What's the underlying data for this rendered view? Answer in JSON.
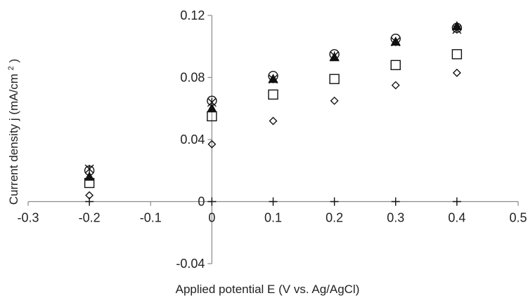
{
  "chart_data": {
    "type": "scatter",
    "title": "",
    "xlabel": "Applied potential E (V vs. Ag/AgCl)",
    "ylabel_main": "Current density j (mA/cm",
    "ylabel_sup": "2",
    "ylabel_tail": ")",
    "xlim": [
      -0.3,
      0.5
    ],
    "ylim": [
      -0.04,
      0.12
    ],
    "x_ticks": [
      -0.3,
      -0.2,
      -0.1,
      0,
      0.1,
      0.2,
      0.3,
      0.4,
      0.5
    ],
    "x_tick_labels": [
      "-0.3",
      "-0.2",
      "-0.1",
      "0",
      "0.1",
      "0.2",
      "0.3",
      "0.4",
      "0.5"
    ],
    "y_ticks": [
      -0.04,
      0,
      0.04,
      0.08,
      0.12
    ],
    "y_tick_labels": [
      "-0.04",
      "0",
      "0.04",
      "0.08",
      "0.12"
    ],
    "grid": false,
    "legend": "none",
    "series": [
      {
        "marker": "diamond",
        "points": [
          [
            -0.2,
            0.004
          ],
          [
            0,
            0.037
          ],
          [
            0.1,
            0.052
          ],
          [
            0.2,
            0.065
          ],
          [
            0.3,
            0.075
          ],
          [
            0.4,
            0.083
          ]
        ]
      },
      {
        "marker": "square",
        "points": [
          [
            -0.2,
            0.012
          ],
          [
            0,
            0.055
          ],
          [
            0.1,
            0.069
          ],
          [
            0.2,
            0.079
          ],
          [
            0.3,
            0.088
          ],
          [
            0.4,
            0.095
          ]
        ]
      },
      {
        "marker": "triangle",
        "points": [
          [
            -0.2,
            0.016
          ],
          [
            0,
            0.06
          ],
          [
            0.1,
            0.079
          ],
          [
            0.2,
            0.093
          ],
          [
            0.3,
            0.103
          ],
          [
            0.4,
            0.113
          ]
        ]
      },
      {
        "marker": "asterisk",
        "points": [
          [
            -0.2,
            0.021
          ],
          [
            0,
            0.064
          ],
          [
            0.1,
            0.079
          ],
          [
            0.2,
            0.094
          ],
          [
            0.3,
            0.103
          ],
          [
            0.4,
            0.111
          ]
        ]
      },
      {
        "marker": "circle",
        "points": [
          [
            -0.2,
            0.02
          ],
          [
            0,
            0.065
          ],
          [
            0.1,
            0.081
          ],
          [
            0.2,
            0.095
          ],
          [
            0.3,
            0.105
          ],
          [
            0.4,
            0.112
          ]
        ]
      },
      {
        "marker": "plus",
        "points": [
          [
            -0.2,
            0
          ],
          [
            0,
            0
          ],
          [
            0.1,
            0
          ],
          [
            0.2,
            0
          ],
          [
            0.3,
            0
          ],
          [
            0.4,
            0
          ]
        ]
      }
    ]
  }
}
